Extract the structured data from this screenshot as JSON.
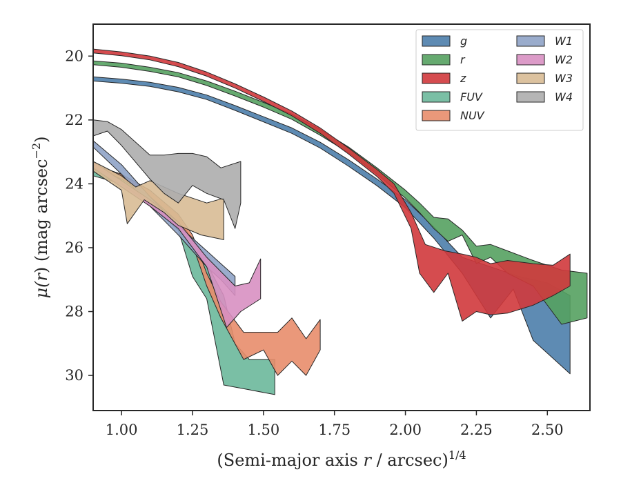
{
  "chart_data": {
    "type": "area",
    "xlabel": "(Semi-major axis r / arcsec)^{1/4}",
    "xlabel_parts": {
      "pre": "(Semi-major axis ",
      "var": "r",
      "post": " / arcsec)",
      "sup": "1/4"
    },
    "ylabel": "μ(r) (mag arcsec^{-2})",
    "ylabel_parts": {
      "mu": "μ(",
      "var": "r",
      "mid": ") (mag arcsec",
      "sup": "−2",
      "close": ")"
    },
    "xlim": [
      0.9,
      2.65
    ],
    "ylim": [
      31.1,
      19.0
    ],
    "y_inverted": true,
    "x_ticks": [
      1.0,
      1.25,
      1.5,
      1.75,
      2.0,
      2.25,
      2.5
    ],
    "x_tick_labels": [
      "1.00",
      "1.25",
      "1.50",
      "1.75",
      "2.00",
      "2.25",
      "2.50"
    ],
    "y_ticks": [
      20,
      22,
      24,
      26,
      28,
      30
    ],
    "y_tick_labels": [
      "20",
      "22",
      "24",
      "26",
      "28",
      "30"
    ],
    "grid": false,
    "legend_position": "top-right",
    "legend_columns": 2,
    "series": [
      {
        "name": "g",
        "color": "#4c7eab",
        "upper": [
          [
            0.9,
            20.65
          ],
          [
            1.0,
            20.72
          ],
          [
            1.1,
            20.82
          ],
          [
            1.2,
            20.98
          ],
          [
            1.3,
            21.22
          ],
          [
            1.4,
            21.55
          ],
          [
            1.5,
            21.9
          ],
          [
            1.6,
            22.25
          ],
          [
            1.7,
            22.7
          ],
          [
            1.8,
            23.25
          ],
          [
            1.9,
            23.85
          ],
          [
            2.0,
            24.5
          ],
          [
            2.1,
            25.35
          ],
          [
            2.2,
            26.3
          ],
          [
            2.3,
            26.6
          ],
          [
            2.4,
            26.9
          ],
          [
            2.5,
            27.1
          ],
          [
            2.58,
            27.5
          ]
        ],
        "lower": [
          [
            0.9,
            20.78
          ],
          [
            1.0,
            20.85
          ],
          [
            1.1,
            20.95
          ],
          [
            1.2,
            21.12
          ],
          [
            1.3,
            21.36
          ],
          [
            1.4,
            21.7
          ],
          [
            1.5,
            22.06
          ],
          [
            1.6,
            22.42
          ],
          [
            1.7,
            22.88
          ],
          [
            1.8,
            23.45
          ],
          [
            1.9,
            24.06
          ],
          [
            2.0,
            24.75
          ],
          [
            2.1,
            25.7
          ],
          [
            2.2,
            26.8
          ],
          [
            2.3,
            28.2
          ],
          [
            2.38,
            27.3
          ],
          [
            2.45,
            28.9
          ],
          [
            2.58,
            29.95
          ]
        ]
      },
      {
        "name": "r",
        "color": "#55a160",
        "upper": [
          [
            0.9,
            20.15
          ],
          [
            1.0,
            20.22
          ],
          [
            1.1,
            20.35
          ],
          [
            1.2,
            20.52
          ],
          [
            1.3,
            20.78
          ],
          [
            1.4,
            21.1
          ],
          [
            1.5,
            21.45
          ],
          [
            1.6,
            21.82
          ],
          [
            1.7,
            22.3
          ],
          [
            1.8,
            22.85
          ],
          [
            1.9,
            23.5
          ],
          [
            2.0,
            24.2
          ],
          [
            2.05,
            24.6
          ],
          [
            2.1,
            25.05
          ],
          [
            2.15,
            25.1
          ],
          [
            2.2,
            25.45
          ],
          [
            2.25,
            25.95
          ],
          [
            2.3,
            25.9
          ],
          [
            2.36,
            26.1
          ],
          [
            2.45,
            26.4
          ],
          [
            2.55,
            26.7
          ],
          [
            2.64,
            26.8
          ]
        ],
        "lower": [
          [
            0.9,
            20.27
          ],
          [
            1.0,
            20.35
          ],
          [
            1.1,
            20.48
          ],
          [
            1.2,
            20.65
          ],
          [
            1.3,
            20.92
          ],
          [
            1.4,
            21.25
          ],
          [
            1.5,
            21.6
          ],
          [
            1.6,
            21.98
          ],
          [
            1.7,
            22.48
          ],
          [
            1.8,
            23.03
          ],
          [
            1.9,
            23.7
          ],
          [
            2.0,
            24.45
          ],
          [
            2.05,
            24.9
          ],
          [
            2.1,
            25.4
          ],
          [
            2.15,
            25.8
          ],
          [
            2.2,
            25.6
          ],
          [
            2.25,
            26.5
          ],
          [
            2.3,
            26.3
          ],
          [
            2.36,
            26.8
          ],
          [
            2.45,
            27.2
          ],
          [
            2.55,
            28.4
          ],
          [
            2.64,
            28.2
          ]
        ]
      },
      {
        "name": "z",
        "color": "#d0383c",
        "upper": [
          [
            0.9,
            19.78
          ],
          [
            1.0,
            19.87
          ],
          [
            1.1,
            20.0
          ],
          [
            1.2,
            20.2
          ],
          [
            1.3,
            20.5
          ],
          [
            1.4,
            20.87
          ],
          [
            1.5,
            21.28
          ],
          [
            1.6,
            21.72
          ],
          [
            1.7,
            22.25
          ],
          [
            1.8,
            22.88
          ],
          [
            1.9,
            23.55
          ],
          [
            1.96,
            24.0
          ],
          [
            2.02,
            24.9
          ],
          [
            2.07,
            25.9
          ],
          [
            2.14,
            26.1
          ],
          [
            2.2,
            26.2
          ],
          [
            2.25,
            26.3
          ],
          [
            2.3,
            26.5
          ],
          [
            2.36,
            26.4
          ],
          [
            2.45,
            26.5
          ],
          [
            2.52,
            26.55
          ],
          [
            2.58,
            26.2
          ]
        ],
        "lower": [
          [
            0.9,
            19.9
          ],
          [
            1.0,
            19.99
          ],
          [
            1.1,
            20.12
          ],
          [
            1.2,
            20.33
          ],
          [
            1.3,
            20.63
          ],
          [
            1.4,
            21.0
          ],
          [
            1.5,
            21.42
          ],
          [
            1.6,
            21.87
          ],
          [
            1.7,
            22.42
          ],
          [
            1.8,
            23.07
          ],
          [
            1.9,
            23.77
          ],
          [
            1.96,
            24.3
          ],
          [
            2.02,
            25.4
          ],
          [
            2.05,
            26.8
          ],
          [
            2.1,
            27.4
          ],
          [
            2.15,
            26.8
          ],
          [
            2.2,
            28.3
          ],
          [
            2.25,
            28.0
          ],
          [
            2.3,
            28.1
          ],
          [
            2.36,
            28.05
          ],
          [
            2.45,
            27.8
          ],
          [
            2.52,
            27.5
          ],
          [
            2.58,
            27.2
          ]
        ]
      },
      {
        "name": "FUV",
        "color": "#6cb89b",
        "upper": [
          [
            0.9,
            23.55
          ],
          [
            1.0,
            23.75
          ],
          [
            1.1,
            24.2
          ],
          [
            1.2,
            25.0
          ],
          [
            1.25,
            25.8
          ],
          [
            1.3,
            26.5
          ],
          [
            1.36,
            27.5
          ],
          [
            1.4,
            29.0
          ],
          [
            1.45,
            29.5
          ],
          [
            1.54,
            29.5
          ]
        ],
        "lower": [
          [
            0.9,
            23.75
          ],
          [
            1.0,
            24.0
          ],
          [
            1.1,
            24.6
          ],
          [
            1.2,
            25.45
          ],
          [
            1.25,
            26.9
          ],
          [
            1.3,
            27.6
          ],
          [
            1.36,
            30.3
          ],
          [
            1.45,
            30.45
          ],
          [
            1.54,
            30.6
          ]
        ]
      },
      {
        "name": "NUV",
        "color": "#e88d6b",
        "upper": [
          [
            0.9,
            23.4
          ],
          [
            1.0,
            23.7
          ],
          [
            1.1,
            24.2
          ],
          [
            1.2,
            24.95
          ],
          [
            1.25,
            25.6
          ],
          [
            1.3,
            26.8
          ],
          [
            1.35,
            27.7
          ],
          [
            1.43,
            28.65
          ],
          [
            1.5,
            28.65
          ],
          [
            1.55,
            28.65
          ],
          [
            1.6,
            28.2
          ],
          [
            1.65,
            28.85
          ],
          [
            1.7,
            28.25
          ]
        ],
        "lower": [
          [
            0.9,
            23.5
          ],
          [
            1.0,
            23.85
          ],
          [
            1.1,
            24.4
          ],
          [
            1.2,
            25.2
          ],
          [
            1.25,
            25.9
          ],
          [
            1.3,
            27.2
          ],
          [
            1.35,
            28.2
          ],
          [
            1.43,
            29.5
          ],
          [
            1.5,
            29.2
          ],
          [
            1.55,
            30.0
          ],
          [
            1.6,
            29.55
          ],
          [
            1.65,
            30.0
          ],
          [
            1.7,
            29.2
          ]
        ]
      },
      {
        "name": "W1",
        "color": "#8fa3c6",
        "upper": [
          [
            0.9,
            22.65
          ],
          [
            1.0,
            23.4
          ],
          [
            1.1,
            24.4
          ],
          [
            1.2,
            25.3
          ],
          [
            1.3,
            26.1
          ],
          [
            1.35,
            26.5
          ],
          [
            1.4,
            26.9
          ]
        ],
        "lower": [
          [
            0.9,
            22.85
          ],
          [
            1.0,
            23.7
          ],
          [
            1.1,
            24.7
          ],
          [
            1.2,
            25.6
          ],
          [
            1.3,
            26.6
          ],
          [
            1.35,
            27.0
          ],
          [
            1.4,
            27.5
          ]
        ]
      },
      {
        "name": "W2",
        "color": "#d890c2",
        "upper": [
          [
            0.9,
            23.3
          ],
          [
            1.0,
            23.9
          ],
          [
            1.1,
            24.5
          ],
          [
            1.2,
            25.2
          ],
          [
            1.3,
            26.3
          ],
          [
            1.4,
            27.2
          ],
          [
            1.45,
            27.1
          ],
          [
            1.49,
            26.35
          ]
        ],
        "lower": [
          [
            0.9,
            23.5
          ],
          [
            1.0,
            24.1
          ],
          [
            1.1,
            24.7
          ],
          [
            1.2,
            25.4
          ],
          [
            1.3,
            26.6
          ],
          [
            1.37,
            28.5
          ],
          [
            1.42,
            28.0
          ],
          [
            1.49,
            27.6
          ]
        ]
      },
      {
        "name": "W3",
        "color": "#d8bb95",
        "upper": [
          [
            0.9,
            23.3
          ],
          [
            1.0,
            23.75
          ],
          [
            1.05,
            24.1
          ],
          [
            1.1,
            23.9
          ],
          [
            1.2,
            24.3
          ],
          [
            1.25,
            24.45
          ],
          [
            1.3,
            24.6
          ],
          [
            1.36,
            24.45
          ]
        ],
        "lower": [
          [
            0.9,
            23.6
          ],
          [
            1.0,
            24.2
          ],
          [
            1.02,
            25.25
          ],
          [
            1.08,
            24.5
          ],
          [
            1.15,
            24.9
          ],
          [
            1.2,
            25.3
          ],
          [
            1.28,
            25.6
          ],
          [
            1.36,
            25.75
          ]
        ]
      },
      {
        "name": "W4",
        "color": "#adadad",
        "upper": [
          [
            0.9,
            22.0
          ],
          [
            0.95,
            22.05
          ],
          [
            1.0,
            22.3
          ],
          [
            1.1,
            23.1
          ],
          [
            1.15,
            23.1
          ],
          [
            1.2,
            23.05
          ],
          [
            1.25,
            23.05
          ],
          [
            1.3,
            23.15
          ],
          [
            1.35,
            23.5
          ],
          [
            1.42,
            23.3
          ]
        ],
        "lower": [
          [
            0.9,
            22.5
          ],
          [
            0.95,
            22.35
          ],
          [
            1.0,
            22.8
          ],
          [
            1.1,
            23.85
          ],
          [
            1.15,
            24.3
          ],
          [
            1.2,
            24.6
          ],
          [
            1.25,
            24.05
          ],
          [
            1.3,
            24.3
          ],
          [
            1.36,
            24.5
          ],
          [
            1.4,
            25.4
          ],
          [
            1.42,
            24.6
          ]
        ]
      }
    ]
  }
}
